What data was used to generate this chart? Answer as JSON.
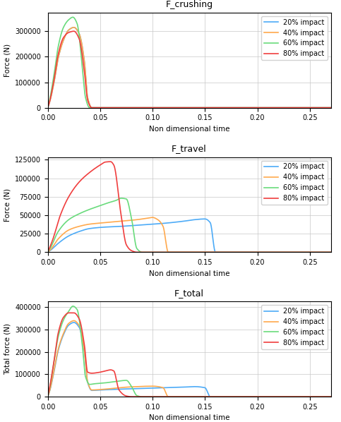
{
  "title1": "F_crushing",
  "title2": "F_travel",
  "title3": "F_total",
  "ylabel1": "Force (N)",
  "ylabel2": "Force (N)",
  "ylabel3": "Total force (N)",
  "xlabel": "Non dimensional time",
  "colors": [
    "#4dabf7",
    "#ffa94d",
    "#69db7c",
    "#f03e3e"
  ],
  "labels": [
    "20% impact",
    "40% impact",
    "60% impact",
    "80% impact"
  ],
  "xlim": [
    0.0,
    0.27
  ],
  "crush_20_t": [
    0.0,
    0.002,
    0.006,
    0.01,
    0.015,
    0.02,
    0.025,
    0.03,
    0.035,
    0.038,
    0.042,
    0.27
  ],
  "crush_20_f": [
    0,
    25000,
    100000,
    195000,
    265000,
    305000,
    315000,
    290000,
    180000,
    40000,
    0,
    0
  ],
  "crush_40_t": [
    0.0,
    0.002,
    0.006,
    0.01,
    0.015,
    0.02,
    0.025,
    0.03,
    0.035,
    0.038,
    0.042,
    0.27
  ],
  "crush_40_f": [
    0,
    25000,
    100000,
    195000,
    265000,
    305000,
    315000,
    290000,
    180000,
    40000,
    0,
    0
  ],
  "crush_60_t": [
    0.0,
    0.002,
    0.006,
    0.01,
    0.015,
    0.02,
    0.024,
    0.028,
    0.033,
    0.036,
    0.04,
    0.27
  ],
  "crush_60_f": [
    0,
    35000,
    130000,
    240000,
    315000,
    345000,
    355000,
    330000,
    160000,
    40000,
    0,
    0
  ],
  "crush_80_t": [
    0.0,
    0.002,
    0.006,
    0.01,
    0.015,
    0.02,
    0.025,
    0.03,
    0.035,
    0.038,
    0.042,
    0.27
  ],
  "crush_80_f": [
    0,
    28000,
    110000,
    210000,
    275000,
    295000,
    300000,
    270000,
    140000,
    30000,
    0,
    0
  ],
  "travel_20_t": [
    0.0,
    0.003,
    0.01,
    0.02,
    0.03,
    0.04,
    0.055,
    0.07,
    0.09,
    0.11,
    0.13,
    0.14,
    0.15,
    0.155,
    0.16,
    0.27
  ],
  "travel_20_f": [
    0,
    3000,
    12000,
    22000,
    28000,
    32000,
    34000,
    35000,
    37000,
    39000,
    42000,
    44000,
    45000,
    40000,
    0,
    0
  ],
  "travel_40_t": [
    0.0,
    0.003,
    0.01,
    0.02,
    0.03,
    0.04,
    0.055,
    0.07,
    0.085,
    0.095,
    0.1,
    0.105,
    0.11,
    0.115,
    0.27
  ],
  "travel_40_f": [
    0,
    4000,
    18000,
    30000,
    35000,
    38000,
    40000,
    42000,
    44000,
    46000,
    47000,
    44000,
    35000,
    0,
    0
  ],
  "travel_60_t": [
    0.0,
    0.003,
    0.01,
    0.02,
    0.03,
    0.04,
    0.05,
    0.058,
    0.065,
    0.07,
    0.075,
    0.08,
    0.085,
    0.09,
    0.27
  ],
  "travel_60_f": [
    0,
    7000,
    28000,
    44000,
    52000,
    58000,
    63000,
    67000,
    70000,
    73000,
    72000,
    45000,
    5000,
    0,
    0
  ],
  "travel_80_t": [
    0.0,
    0.005,
    0.012,
    0.02,
    0.03,
    0.04,
    0.05,
    0.055,
    0.06,
    0.063,
    0.07,
    0.075,
    0.08,
    0.085,
    0.27
  ],
  "travel_80_f": [
    0,
    18000,
    50000,
    75000,
    95000,
    108000,
    118000,
    122000,
    122500,
    118000,
    50000,
    10000,
    2000,
    0,
    0
  ],
  "total_20_t": [
    0.0,
    0.002,
    0.006,
    0.01,
    0.015,
    0.02,
    0.025,
    0.03,
    0.035,
    0.038,
    0.042,
    0.05,
    0.09,
    0.13,
    0.14,
    0.15,
    0.155,
    0.27
  ],
  "total_20_f": [
    0,
    28000,
    112000,
    207000,
    277000,
    320000,
    332000,
    310000,
    200000,
    65000,
    28000,
    30000,
    37000,
    43000,
    45000,
    40000,
    0,
    0
  ],
  "total_40_t": [
    0.0,
    0.002,
    0.006,
    0.01,
    0.015,
    0.02,
    0.025,
    0.03,
    0.035,
    0.038,
    0.042,
    0.05,
    0.08,
    0.1,
    0.11,
    0.115,
    0.27
  ],
  "total_40_f": [
    0,
    29000,
    118000,
    213000,
    283000,
    328000,
    340000,
    318000,
    205000,
    68000,
    30000,
    32000,
    44000,
    47000,
    40000,
    0,
    0
  ],
  "total_60_t": [
    0.0,
    0.002,
    0.006,
    0.01,
    0.015,
    0.02,
    0.024,
    0.028,
    0.033,
    0.036,
    0.04,
    0.045,
    0.055,
    0.065,
    0.075,
    0.08,
    0.085,
    0.09,
    0.27
  ],
  "total_60_f": [
    0,
    42000,
    158000,
    268000,
    343000,
    382000,
    405000,
    390000,
    230000,
    90000,
    55000,
    58000,
    62000,
    68000,
    73000,
    45000,
    5000,
    0,
    0
  ],
  "total_80_t": [
    0.0,
    0.002,
    0.006,
    0.01,
    0.015,
    0.02,
    0.025,
    0.03,
    0.035,
    0.038,
    0.042,
    0.048,
    0.055,
    0.06,
    0.063,
    0.068,
    0.075,
    0.08,
    0.27
  ],
  "total_80_f": [
    0,
    46000,
    160000,
    285000,
    355000,
    375000,
    375000,
    348000,
    230000,
    110000,
    105000,
    108000,
    115000,
    120000,
    115000,
    30000,
    3000,
    0,
    0
  ]
}
